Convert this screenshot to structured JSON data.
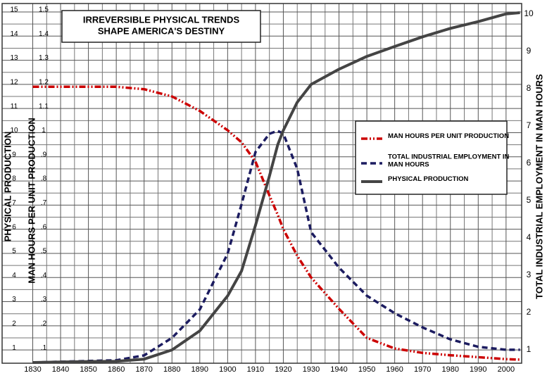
{
  "chart_data": {
    "type": "line",
    "title": [
      "IRREVERSIBLE PHYSICAL TRENDS",
      "SHAPE AMERICA'S DESTINY"
    ],
    "ylabel": "PHYSICAL PRODUCTION",
    "y3label": "MAN HOURS PER UNIT PRODUCTION",
    "y2label": "TOTAL INDUSTRIAL EMPLOYMENT IN MAN HOURS",
    "x": [
      1830,
      1840,
      1850,
      1860,
      1870,
      1880,
      1890,
      1900,
      1905,
      1910,
      1915,
      1918,
      1920,
      1925,
      1930,
      1940,
      1950,
      1960,
      1970,
      1980,
      1990,
      2000,
      2005
    ],
    "xlim": [
      1819,
      2005.6
    ],
    "xticks": [
      1830,
      1840,
      1850,
      1860,
      1870,
      1880,
      1890,
      1900,
      1910,
      1920,
      1930,
      1940,
      1950,
      1960,
      1970,
      1980,
      1990,
      2000
    ],
    "ylim": [
      0.45,
      15.35
    ],
    "yticks": [
      1,
      2,
      3,
      4,
      5,
      6,
      7,
      8,
      9,
      10,
      11,
      12,
      13,
      14,
      15
    ],
    "y3lim": [
      0.045,
      1.535
    ],
    "y3ticks": [
      {
        "value": 0.1,
        "label": ".1"
      },
      {
        "value": 0.2,
        "label": ".2"
      },
      {
        "value": 0.3,
        "label": ".3"
      },
      {
        "value": 0.4,
        "label": ".4"
      },
      {
        "value": 0.5,
        "label": ".5"
      },
      {
        "value": 0.6,
        "label": ".6"
      },
      {
        "value": 0.7,
        "label": ".7"
      },
      {
        "value": 0.8,
        "label": ".8"
      },
      {
        "value": 0.9,
        "label": ".9"
      },
      1,
      1.1,
      1.2,
      1.3,
      1.4,
      1.5
    ],
    "y2lim": [
      0.64,
      10.28
    ],
    "y2ticks": [
      1,
      2,
      3,
      4,
      5,
      6,
      7,
      8,
      9,
      10
    ],
    "grid": true,
    "series": [
      {
        "name": "MAN HOURS PER UNIT PRODUCTION",
        "color": "#cc0000",
        "axis": "y3",
        "style": "dash-dot-dot",
        "values": [
          1.19,
          1.19,
          1.19,
          1.19,
          1.18,
          1.15,
          1.09,
          1.01,
          0.96,
          0.88,
          0.74,
          0.66,
          0.6,
          0.49,
          0.4,
          0.27,
          0.15,
          0.106,
          0.088,
          0.078,
          0.07,
          0.062,
          0.06
        ]
      },
      {
        "name": "TOTAL INDUSTRIAL EMPLOYMENT IN MAN HOURS",
        "color": "#1c1c60",
        "axis": "y2",
        "style": "dash",
        "values": [
          0.66,
          0.68,
          0.7,
          0.72,
          0.85,
          1.32,
          2.08,
          3.58,
          4.9,
          6.3,
          6.79,
          6.87,
          6.79,
          5.85,
          4.15,
          3.2,
          2.45,
          1.98,
          1.6,
          1.28,
          1.08,
          1.0,
          1.0
        ]
      },
      {
        "name": "PHYSICAL PRODUCTION",
        "color": "#444444",
        "axis": "y",
        "style": "solid",
        "values": [
          0.48,
          0.5,
          0.52,
          0.53,
          0.62,
          1.0,
          1.79,
          3.24,
          4.27,
          6.16,
          8.2,
          9.5,
          10.1,
          11.26,
          12.0,
          12.63,
          13.16,
          13.57,
          13.97,
          14.32,
          14.6,
          14.92,
          14.97
        ]
      }
    ]
  }
}
